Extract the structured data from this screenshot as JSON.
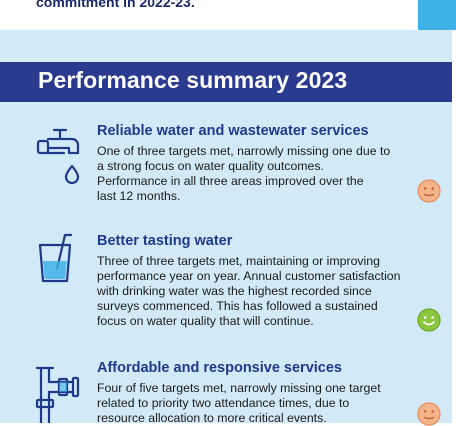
{
  "top": {
    "text": "commitment in 2022-23."
  },
  "banner": {
    "title": "Performance summary 2023"
  },
  "items": [
    {
      "title": "Reliable water and wastewater services",
      "lines": [
        "One of three targets met, narrowly missing one due to",
        "a strong focus on water quality outcomes.",
        "Performance in all three areas improved over the",
        "last 12 months."
      ],
      "icon": "tap-drop-icon",
      "status": "neutral",
      "status_color": "#f4a261"
    },
    {
      "title": "Better tasting water",
      "lines": [
        "Three of three targets met, maintaining or improving",
        "performance year on year. Annual customer satisfaction",
        "with drinking water was the highest recorded since",
        "surveys commenced. This has followed a sustained",
        "focus on water quality that will continue."
      ],
      "icon": "glass-straw-icon",
      "status": "happy",
      "status_color": "#8cc63f"
    },
    {
      "title": "Affordable and responsive services",
      "lines": [
        "Four of five targets met, narrowly missing one target",
        "related to priority two attendance times, due to",
        "resource allocation to more critical events."
      ],
      "icon": "pipe-icon",
      "status": "neutral",
      "status_color": "#f4a261"
    }
  ],
  "colors": {
    "banner": "#2a3b8f",
    "panel": "#d2eaf8",
    "accent": "#3fb2e6",
    "title": "#1f3a8a"
  }
}
